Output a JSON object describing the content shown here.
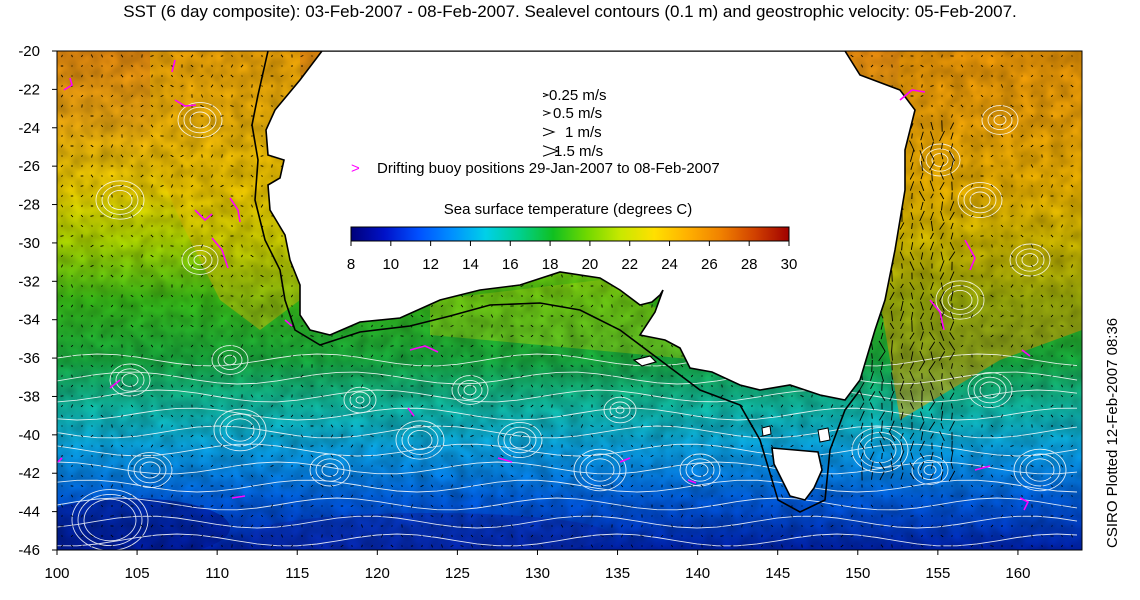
{
  "title": "SST (6 day composite): 03-Feb-2007 - 08-Feb-2007. Sealevel contours (0.1 m) and geostrophic velocity: 05-Feb-2007.",
  "side_label": "CSIRO Plotted 12-Feb-2007 08:36",
  "velocity_legend": [
    {
      "label": "0.25 m/s",
      "speed": 0.25
    },
    {
      "label": "0.5 m/s",
      "speed": 0.5
    },
    {
      "label": "1 m/s",
      "speed": 1
    },
    {
      "label": "1.5 m/s",
      "speed": 1.5
    }
  ],
  "buoy_legend": {
    "symbol": ">",
    "label": "Drifting buoy positions 29-Jan-2007 to 08-Feb-2007"
  },
  "colorbar": {
    "title": "Sea surface temperature (degrees C)",
    "ticks": [
      "8",
      "10",
      "12",
      "14",
      "16",
      "18",
      "20",
      "22",
      "24",
      "26",
      "28",
      "30"
    ],
    "min": 8,
    "max": 30,
    "colors": [
      "#00007a",
      "#0012c8",
      "#0050ff",
      "#0090ff",
      "#00d0e8",
      "#00d090",
      "#10c020",
      "#70d800",
      "#c8e800",
      "#ffe000",
      "#ffb000",
      "#f08000",
      "#d04000",
      "#a00000"
    ]
  },
  "axes": {
    "lon_ticks": [
      "100",
      "105",
      "110",
      "115",
      "120",
      "125",
      "130",
      "135",
      "140",
      "145",
      "150",
      "155",
      "160"
    ],
    "lat_ticks": [
      "-20",
      "-22",
      "-24",
      "-26",
      "-28",
      "-30",
      "-32",
      "-34",
      "-36",
      "-38",
      "-40",
      "-42",
      "-44",
      "-46"
    ],
    "lon_range": [
      100,
      164
    ],
    "lat_range": [
      -46,
      -20
    ]
  },
  "colors": {
    "land": "#ffffff",
    "coastline": "#000000",
    "shelf_contour": "#000000",
    "sealevel_contour": "#ffffff",
    "velocity_arrow": "#000000",
    "buoy_track": "#ff00ff"
  }
}
